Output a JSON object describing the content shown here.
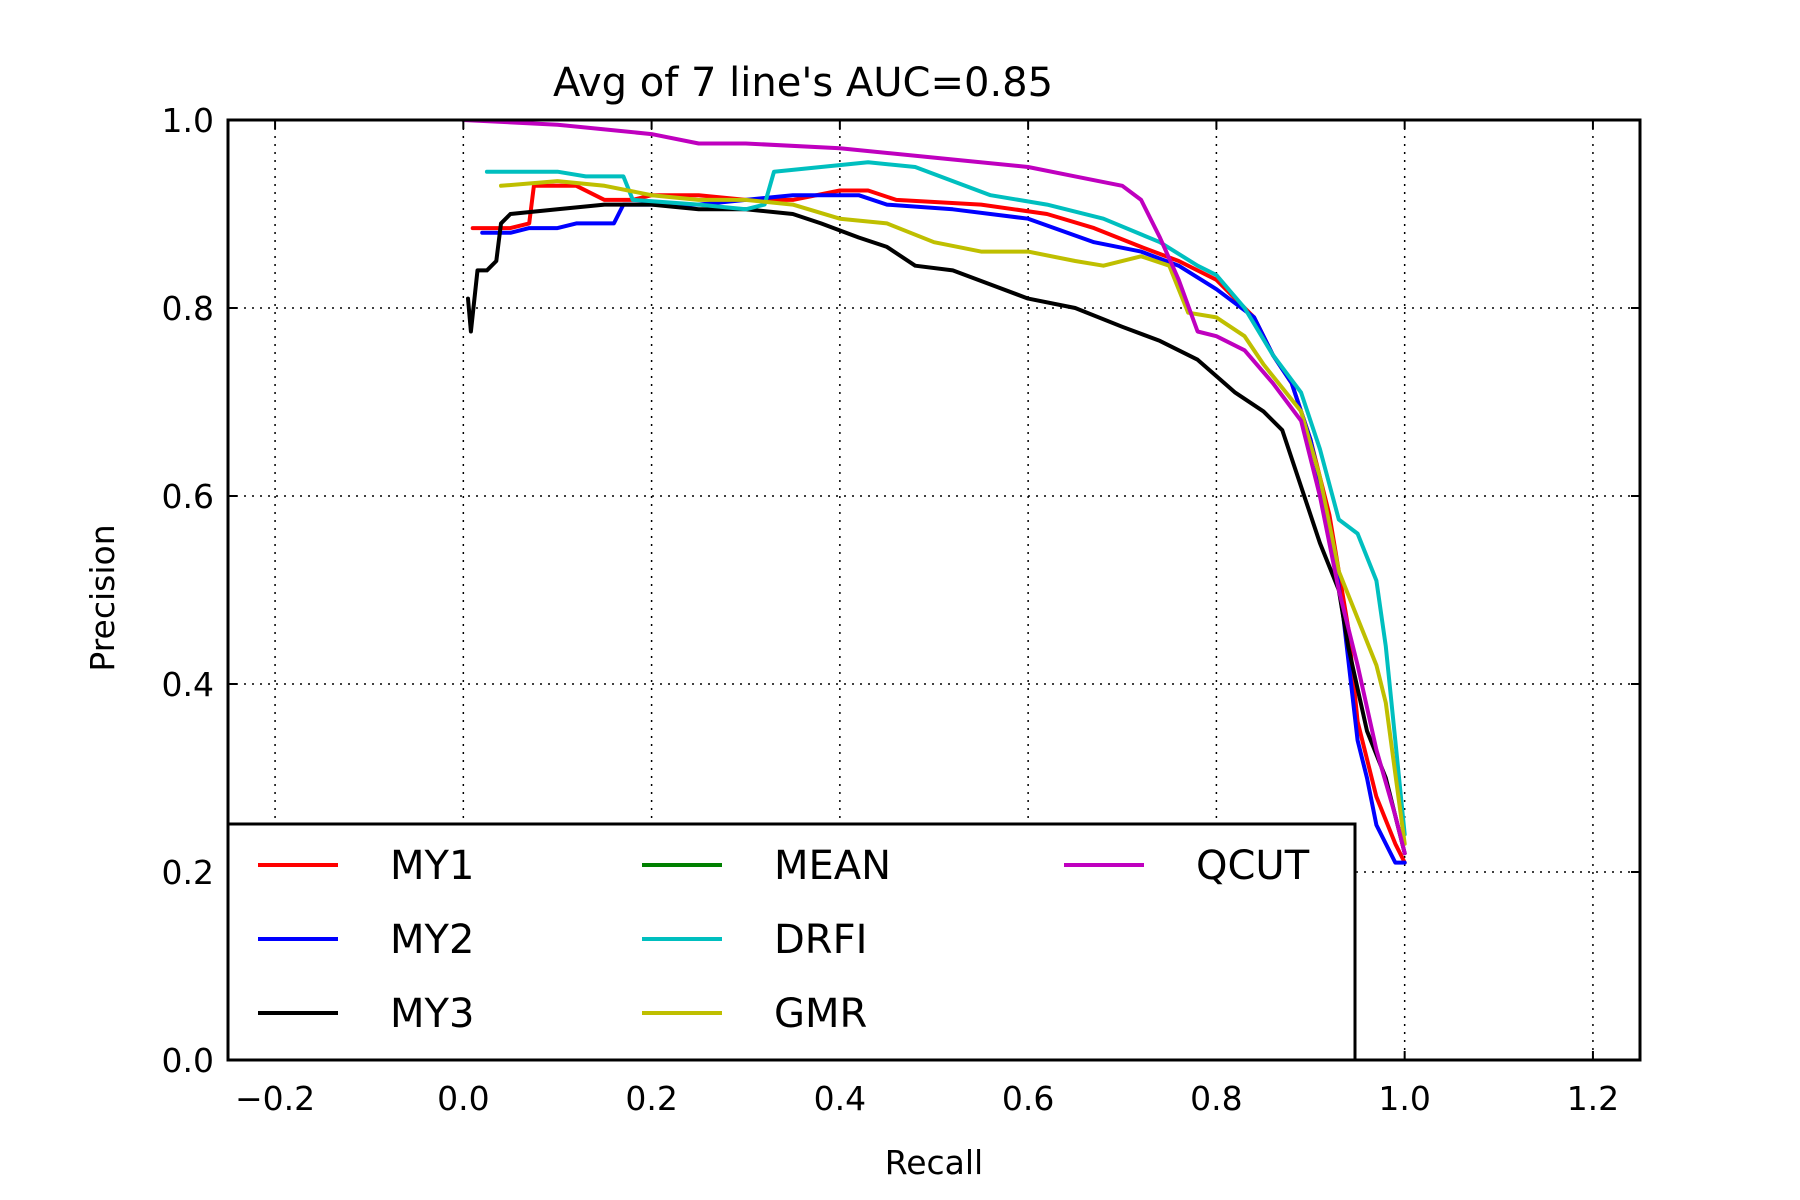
{
  "chart_data": {
    "type": "line",
    "title": "Avg of 7 line's AUC=0.85",
    "xlabel": "Recall",
    "ylabel": "Precision",
    "xlim": [
      -0.25,
      1.25
    ],
    "ylim": [
      0.0,
      1.0
    ],
    "xticks": [
      -0.2,
      0.0,
      0.2,
      0.4,
      0.6,
      0.8,
      1.0,
      1.2
    ],
    "xtick_labels": [
      "−0.2",
      "0.0",
      "0.2",
      "0.4",
      "0.6",
      "0.8",
      "1.0",
      "1.2"
    ],
    "yticks": [
      0.0,
      0.2,
      0.4,
      0.6,
      0.8,
      1.0
    ],
    "ytick_labels": [
      "0.0",
      "0.2",
      "0.4",
      "0.6",
      "0.8",
      "1.0"
    ],
    "grid": true,
    "legend_position": "lower-left",
    "legend_columns": 3,
    "series": [
      {
        "name": "MY1",
        "color": "#ff0000",
        "points": [
          [
            0.01,
            0.885
          ],
          [
            0.05,
            0.885
          ],
          [
            0.07,
            0.89
          ],
          [
            0.075,
            0.93
          ],
          [
            0.12,
            0.93
          ],
          [
            0.15,
            0.915
          ],
          [
            0.18,
            0.915
          ],
          [
            0.2,
            0.92
          ],
          [
            0.25,
            0.92
          ],
          [
            0.3,
            0.915
          ],
          [
            0.35,
            0.915
          ],
          [
            0.4,
            0.925
          ],
          [
            0.43,
            0.925
          ],
          [
            0.46,
            0.915
          ],
          [
            0.55,
            0.91
          ],
          [
            0.62,
            0.9
          ],
          [
            0.67,
            0.885
          ],
          [
            0.72,
            0.865
          ],
          [
            0.76,
            0.85
          ],
          [
            0.8,
            0.83
          ],
          [
            0.84,
            0.79
          ],
          [
            0.86,
            0.75
          ],
          [
            0.88,
            0.72
          ],
          [
            0.9,
            0.66
          ],
          [
            0.92,
            0.58
          ],
          [
            0.94,
            0.46
          ],
          [
            0.95,
            0.36
          ],
          [
            0.97,
            0.28
          ],
          [
            0.99,
            0.23
          ],
          [
            1.0,
            0.21
          ]
        ]
      },
      {
        "name": "MY2",
        "color": "#0000ff",
        "points": [
          [
            0.02,
            0.88
          ],
          [
            0.05,
            0.88
          ],
          [
            0.07,
            0.885
          ],
          [
            0.1,
            0.885
          ],
          [
            0.12,
            0.89
          ],
          [
            0.16,
            0.89
          ],
          [
            0.17,
            0.91
          ],
          [
            0.25,
            0.91
          ],
          [
            0.3,
            0.915
          ],
          [
            0.35,
            0.92
          ],
          [
            0.42,
            0.92
          ],
          [
            0.45,
            0.91
          ],
          [
            0.52,
            0.905
          ],
          [
            0.6,
            0.895
          ],
          [
            0.67,
            0.87
          ],
          [
            0.72,
            0.86
          ],
          [
            0.76,
            0.845
          ],
          [
            0.8,
            0.82
          ],
          [
            0.84,
            0.79
          ],
          [
            0.86,
            0.75
          ],
          [
            0.88,
            0.72
          ],
          [
            0.9,
            0.66
          ],
          [
            0.92,
            0.57
          ],
          [
            0.935,
            0.47
          ],
          [
            0.95,
            0.34
          ],
          [
            0.96,
            0.3
          ],
          [
            0.97,
            0.25
          ],
          [
            0.99,
            0.21
          ],
          [
            1.0,
            0.21
          ]
        ]
      },
      {
        "name": "MY3",
        "color": "#000000",
        "points": [
          [
            0.005,
            0.81
          ],
          [
            0.008,
            0.775
          ],
          [
            0.015,
            0.84
          ],
          [
            0.025,
            0.84
          ],
          [
            0.035,
            0.85
          ],
          [
            0.04,
            0.89
          ],
          [
            0.05,
            0.9
          ],
          [
            0.1,
            0.905
          ],
          [
            0.15,
            0.91
          ],
          [
            0.2,
            0.91
          ],
          [
            0.25,
            0.905
          ],
          [
            0.3,
            0.905
          ],
          [
            0.35,
            0.9
          ],
          [
            0.38,
            0.89
          ],
          [
            0.42,
            0.875
          ],
          [
            0.45,
            0.865
          ],
          [
            0.48,
            0.845
          ],
          [
            0.52,
            0.84
          ],
          [
            0.56,
            0.825
          ],
          [
            0.6,
            0.81
          ],
          [
            0.65,
            0.8
          ],
          [
            0.7,
            0.78
          ],
          [
            0.74,
            0.765
          ],
          [
            0.78,
            0.745
          ],
          [
            0.82,
            0.71
          ],
          [
            0.85,
            0.69
          ],
          [
            0.87,
            0.67
          ],
          [
            0.89,
            0.61
          ],
          [
            0.91,
            0.55
          ],
          [
            0.93,
            0.5
          ],
          [
            0.94,
            0.44
          ],
          [
            0.96,
            0.35
          ],
          [
            0.98,
            0.3
          ],
          [
            1.0,
            0.22
          ]
        ]
      },
      {
        "name": "MEAN",
        "color": "#008000",
        "points": []
      },
      {
        "name": "DRFI",
        "color": "#00bfbf",
        "points": [
          [
            0.025,
            0.945
          ],
          [
            0.1,
            0.945
          ],
          [
            0.13,
            0.94
          ],
          [
            0.17,
            0.94
          ],
          [
            0.18,
            0.915
          ],
          [
            0.25,
            0.91
          ],
          [
            0.3,
            0.905
          ],
          [
            0.32,
            0.91
          ],
          [
            0.33,
            0.945
          ],
          [
            0.38,
            0.95
          ],
          [
            0.43,
            0.955
          ],
          [
            0.48,
            0.95
          ],
          [
            0.52,
            0.935
          ],
          [
            0.56,
            0.92
          ],
          [
            0.62,
            0.91
          ],
          [
            0.68,
            0.895
          ],
          [
            0.74,
            0.87
          ],
          [
            0.78,
            0.845
          ],
          [
            0.8,
            0.835
          ],
          [
            0.83,
            0.8
          ],
          [
            0.86,
            0.75
          ],
          [
            0.89,
            0.71
          ],
          [
            0.91,
            0.65
          ],
          [
            0.93,
            0.575
          ],
          [
            0.95,
            0.56
          ],
          [
            0.97,
            0.51
          ],
          [
            0.98,
            0.44
          ],
          [
            0.99,
            0.34
          ],
          [
            1.0,
            0.24
          ]
        ]
      },
      {
        "name": "GMR",
        "color": "#bfbf00",
        "points": [
          [
            0.04,
            0.93
          ],
          [
            0.1,
            0.935
          ],
          [
            0.15,
            0.93
          ],
          [
            0.2,
            0.92
          ],
          [
            0.25,
            0.915
          ],
          [
            0.3,
            0.915
          ],
          [
            0.35,
            0.91
          ],
          [
            0.4,
            0.895
          ],
          [
            0.45,
            0.89
          ],
          [
            0.5,
            0.87
          ],
          [
            0.55,
            0.86
          ],
          [
            0.6,
            0.86
          ],
          [
            0.65,
            0.85
          ],
          [
            0.68,
            0.845
          ],
          [
            0.72,
            0.855
          ],
          [
            0.75,
            0.845
          ],
          [
            0.76,
            0.82
          ],
          [
            0.77,
            0.795
          ],
          [
            0.8,
            0.79
          ],
          [
            0.83,
            0.77
          ],
          [
            0.85,
            0.74
          ],
          [
            0.87,
            0.715
          ],
          [
            0.89,
            0.69
          ],
          [
            0.91,
            0.62
          ],
          [
            0.93,
            0.52
          ],
          [
            0.95,
            0.47
          ],
          [
            0.97,
            0.42
          ],
          [
            0.98,
            0.38
          ],
          [
            1.0,
            0.23
          ]
        ]
      },
      {
        "name": "QCUT",
        "color": "#bf00bf",
        "points": [
          [
            0.0,
            1.0
          ],
          [
            0.1,
            0.995
          ],
          [
            0.15,
            0.99
          ],
          [
            0.2,
            0.985
          ],
          [
            0.25,
            0.975
          ],
          [
            0.3,
            0.975
          ],
          [
            0.4,
            0.97
          ],
          [
            0.5,
            0.96
          ],
          [
            0.6,
            0.95
          ],
          [
            0.65,
            0.94
          ],
          [
            0.7,
            0.93
          ],
          [
            0.72,
            0.915
          ],
          [
            0.74,
            0.875
          ],
          [
            0.76,
            0.83
          ],
          [
            0.78,
            0.775
          ],
          [
            0.8,
            0.77
          ],
          [
            0.83,
            0.755
          ],
          [
            0.86,
            0.72
          ],
          [
            0.89,
            0.68
          ],
          [
            0.91,
            0.6
          ],
          [
            0.93,
            0.5
          ],
          [
            0.95,
            0.42
          ],
          [
            0.97,
            0.33
          ],
          [
            0.99,
            0.26
          ],
          [
            1.0,
            0.22
          ]
        ]
      }
    ]
  }
}
